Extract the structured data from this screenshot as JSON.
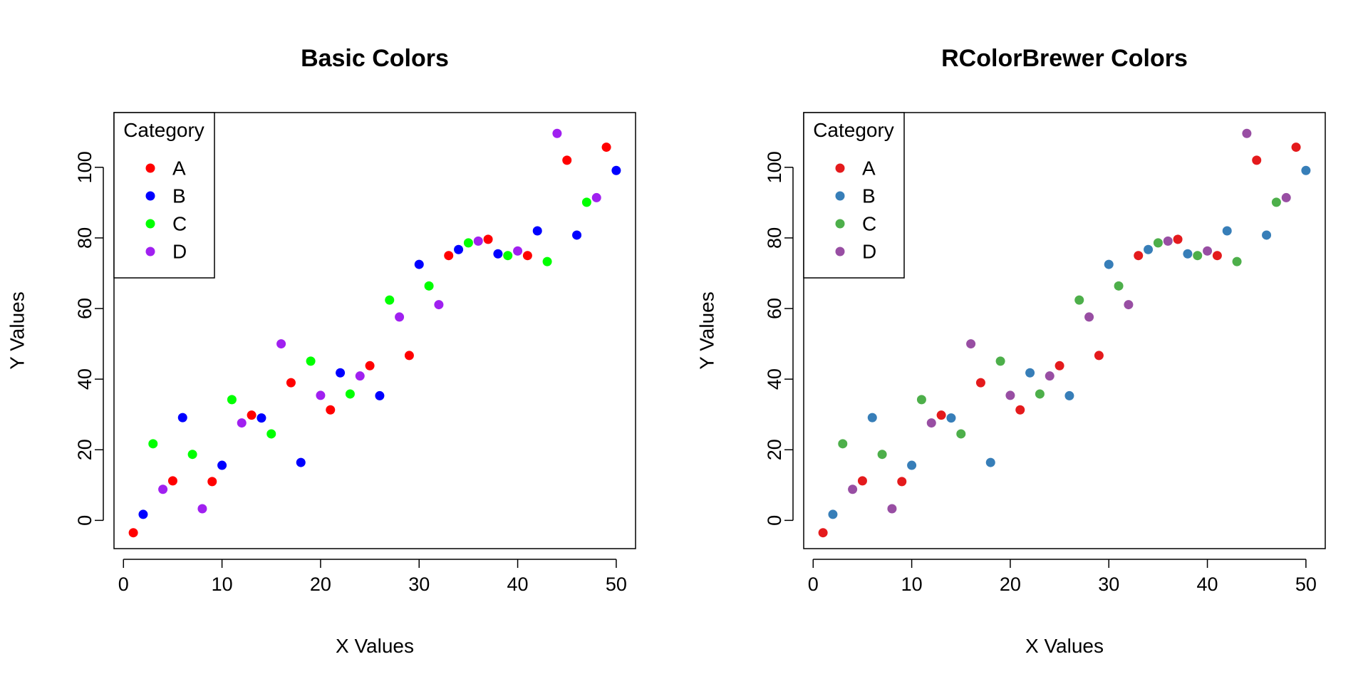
{
  "chart_data": [
    {
      "type": "scatter",
      "title": "Basic Colors",
      "xlabel": "X Values",
      "ylabel": "Y Values",
      "xlim": [
        -0.96,
        51.96
      ],
      "ylim": [
        -8.0,
        115.5
      ],
      "xticks": [
        "0",
        "10",
        "20",
        "30",
        "40",
        "50"
      ],
      "yticks": [
        "0",
        "20",
        "40",
        "60",
        "80",
        "100"
      ],
      "grid": false,
      "legend": {
        "position": "top-left",
        "title": "Category"
      },
      "series": [
        {
          "name": "A",
          "color": "#FF0000",
          "x": [
            1,
            5,
            9,
            13,
            17,
            21,
            25,
            29,
            33,
            37,
            41,
            45,
            49
          ],
          "y": [
            -3.5,
            11.2,
            11,
            29.8,
            39,
            31.3,
            43.8,
            46.7,
            75,
            79.6,
            75,
            102,
            105.7
          ]
        },
        {
          "name": "B",
          "color": "#0000FF",
          "x": [
            2,
            6,
            10,
            14,
            18,
            22,
            26,
            30,
            34,
            38,
            42,
            46,
            50
          ],
          "y": [
            1.7,
            29.1,
            15.6,
            29,
            16.4,
            41.8,
            35.3,
            72.5,
            76.7,
            75.5,
            82,
            80.8,
            99.1
          ]
        },
        {
          "name": "C",
          "color": "#00FF00",
          "x": [
            3,
            7,
            11,
            15,
            19,
            23,
            27,
            31,
            35,
            39,
            43,
            47
          ],
          "y": [
            21.7,
            18.7,
            34.2,
            24.5,
            45.1,
            35.8,
            62.4,
            66.4,
            78.6,
            75,
            73.3,
            90.1
          ]
        },
        {
          "name": "D",
          "color": "#A020F0",
          "x": [
            4,
            8,
            12,
            16,
            20,
            24,
            28,
            32,
            36,
            40,
            44,
            48
          ],
          "y": [
            8.8,
            3.3,
            27.6,
            50,
            35.4,
            40.9,
            57.6,
            61.1,
            79.1,
            76.3,
            109.6,
            91.4
          ]
        }
      ]
    },
    {
      "type": "scatter",
      "title": "RColorBrewer Colors",
      "xlabel": "X Values",
      "ylabel": "Y Values",
      "xlim": [
        -0.96,
        51.96
      ],
      "ylim": [
        -8.0,
        115.5
      ],
      "xticks": [
        "0",
        "10",
        "20",
        "30",
        "40",
        "50"
      ],
      "yticks": [
        "0",
        "20",
        "40",
        "60",
        "80",
        "100"
      ],
      "grid": false,
      "legend": {
        "position": "top-left",
        "title": "Category"
      },
      "series": [
        {
          "name": "A",
          "color": "#E41A1C",
          "x": [
            1,
            5,
            9,
            13,
            17,
            21,
            25,
            29,
            33,
            37,
            41,
            45,
            49
          ],
          "y": [
            -3.5,
            11.2,
            11,
            29.8,
            39,
            31.3,
            43.8,
            46.7,
            75,
            79.6,
            75,
            102,
            105.7
          ]
        },
        {
          "name": "B",
          "color": "#377EB8",
          "x": [
            2,
            6,
            10,
            14,
            18,
            22,
            26,
            30,
            34,
            38,
            42,
            46,
            50
          ],
          "y": [
            1.7,
            29.1,
            15.6,
            29,
            16.4,
            41.8,
            35.3,
            72.5,
            76.7,
            75.5,
            82,
            80.8,
            99.1
          ]
        },
        {
          "name": "C",
          "color": "#4DAF4A",
          "x": [
            3,
            7,
            11,
            15,
            19,
            23,
            27,
            31,
            35,
            39,
            43,
            47
          ],
          "y": [
            21.7,
            18.7,
            34.2,
            24.5,
            45.1,
            35.8,
            62.4,
            66.4,
            78.6,
            75,
            73.3,
            90.1
          ]
        },
        {
          "name": "D",
          "color": "#984EA3",
          "x": [
            4,
            8,
            12,
            16,
            20,
            24,
            28,
            32,
            36,
            40,
            44,
            48
          ],
          "y": [
            8.8,
            3.3,
            27.6,
            50,
            35.4,
            40.9,
            57.6,
            61.1,
            79.1,
            76.3,
            109.6,
            91.4
          ]
        }
      ]
    }
  ]
}
